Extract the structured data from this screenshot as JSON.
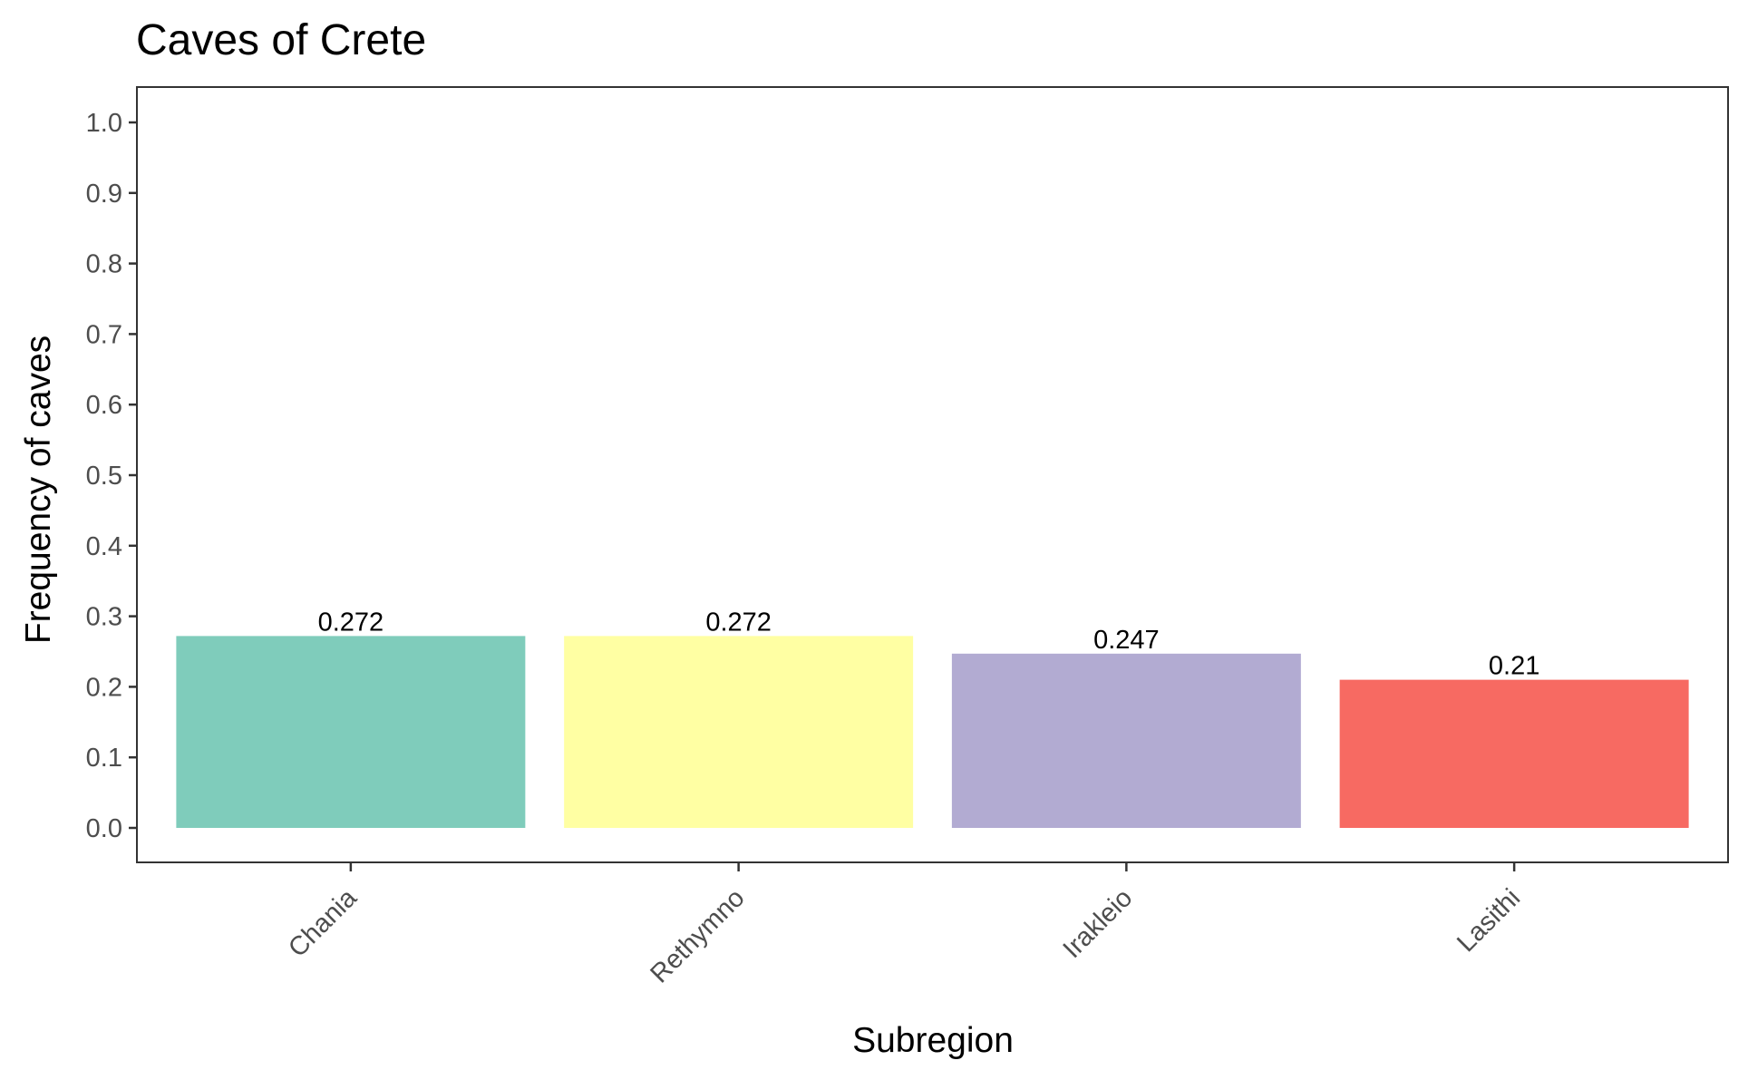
{
  "chart_data": {
    "type": "bar",
    "title": "Caves of Crete",
    "xlabel": "Subregion",
    "ylabel": "Frequency of caves",
    "categories": [
      "Chania",
      "Rethymno",
      "Irakleio",
      "Lasithi"
    ],
    "values": [
      0.272,
      0.272,
      0.247,
      0.21
    ],
    "data_labels": [
      "0.272",
      "0.272",
      "0.247",
      "0.21"
    ],
    "colors": [
      "#7fccbb",
      "#ffffa3",
      "#b2abd2",
      "#f76a62"
    ],
    "ylim": [
      0,
      1.0
    ],
    "y_ticks": [
      0.0,
      0.1,
      0.2,
      0.3,
      0.4,
      0.5,
      0.6,
      0.7,
      0.8,
      0.9,
      1.0
    ],
    "y_tick_labels": [
      "0.0",
      "0.1",
      "0.2",
      "0.3",
      "0.4",
      "0.5",
      "0.6",
      "0.7",
      "0.8",
      "0.9",
      "1.0"
    ],
    "grid": false,
    "legend": "none",
    "x_tick_rotation": 45
  }
}
